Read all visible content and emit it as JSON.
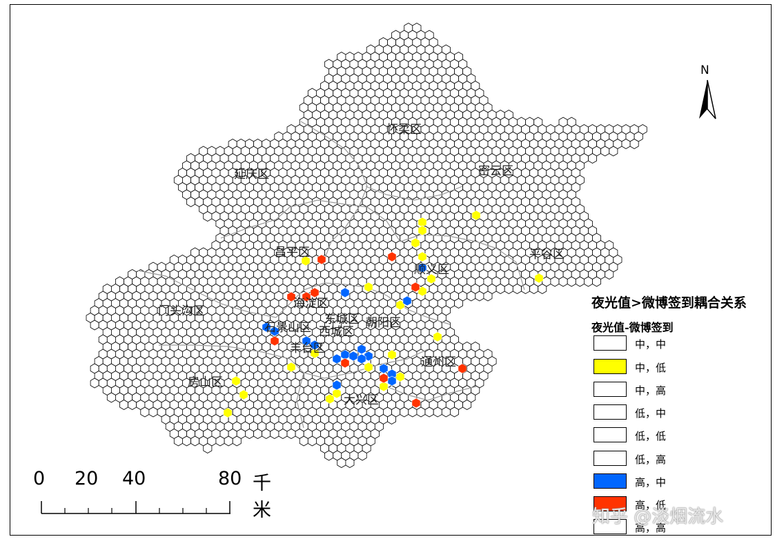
{
  "map": {
    "districts": [
      {
        "id": "huairou",
        "name": "怀柔区"
      },
      {
        "id": "yanqing",
        "name": "延庆区"
      },
      {
        "id": "miyun",
        "name": "密云区"
      },
      {
        "id": "changping",
        "name": "昌平区"
      },
      {
        "id": "pinggu",
        "name": "平谷区"
      },
      {
        "id": "shunyi",
        "name": "顺义区"
      },
      {
        "id": "haidian",
        "name": "海淀区"
      },
      {
        "id": "mentougou",
        "name": "门头沟区"
      },
      {
        "id": "dongcheng",
        "name": "东城区"
      },
      {
        "id": "chaoyang",
        "name": "朝阳区"
      },
      {
        "id": "shijingshan",
        "name": "石景山区"
      },
      {
        "id": "xicheng",
        "name": "西城区"
      },
      {
        "id": "fengtai",
        "name": "丰台区"
      },
      {
        "id": "tongzhou",
        "name": "通州区"
      },
      {
        "id": "fangshan",
        "name": "房山区"
      },
      {
        "id": "daxing",
        "name": "大兴区"
      }
    ],
    "hex_fill_color": "#ffffff",
    "hex_stroke_color": "#000000"
  },
  "north_arrow": {
    "label": "N"
  },
  "scale_bar": {
    "ticks": [
      "0",
      "20",
      "40",
      "80"
    ],
    "unit": "千米"
  },
  "legend": {
    "title": "夜光值>微博签到耦合关系",
    "subtitle": "夜光值-微博签到",
    "items": [
      {
        "label": "中，中",
        "color": "#ffffff"
      },
      {
        "label": "中，低",
        "color": "#ffff00"
      },
      {
        "label": "中，高",
        "color": "#ffffff"
      },
      {
        "label": "低，中",
        "color": "#ffffff"
      },
      {
        "label": "低，低",
        "color": "#ffffff"
      },
      {
        "label": "低，高",
        "color": "#ffffff"
      },
      {
        "label": "高，中",
        "color": "#0066ff"
      },
      {
        "label": "高，低",
        "color": "#ff3300"
      },
      {
        "label": "高，高",
        "color": "#ffffff"
      }
    ]
  },
  "watermark": "知乎 @淡烟流水"
}
